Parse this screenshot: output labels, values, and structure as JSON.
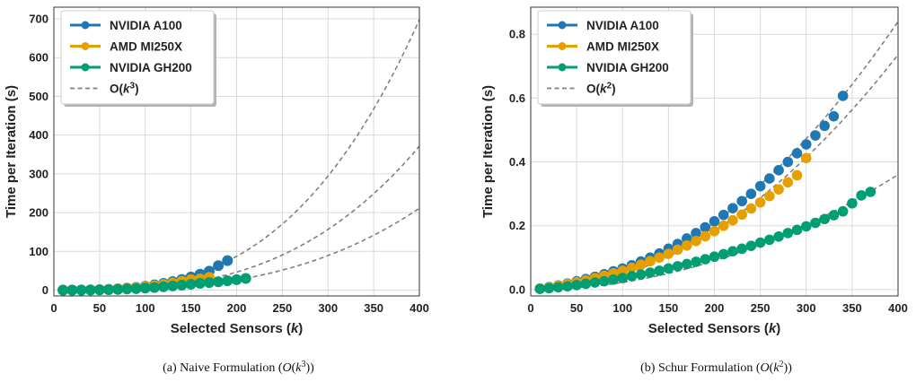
{
  "chart_data": [
    {
      "type": "scatter",
      "caption": "(a) Naive Formulation (𝒪(k³))",
      "xlabel": "Selected Sensors (k)",
      "ylabel": "Time per Iteration (s)",
      "xlim": [
        0,
        400
      ],
      "ylim": [
        -15,
        730
      ],
      "xticks": [
        0,
        50,
        100,
        150,
        200,
        250,
        300,
        350,
        400
      ],
      "yticks": [
        0,
        100,
        200,
        300,
        400,
        500,
        600,
        700
      ],
      "grid": true,
      "legend_position": "top-left",
      "series": [
        {
          "name": "NVIDIA A100",
          "color": "#1f78b4",
          "x": [
            10,
            20,
            30,
            40,
            50,
            60,
            70,
            80,
            90,
            100,
            110,
            120,
            130,
            140,
            150,
            160,
            170,
            180,
            190
          ],
          "y": [
            0.02,
            0.1,
            0.3,
            0.7,
            1.3,
            2.2,
            3.5,
            5.2,
            7.4,
            10,
            13.5,
            17.5,
            22,
            27.5,
            34,
            41,
            49,
            63,
            76
          ]
        },
        {
          "name": "AMD MI250X",
          "color": "#e69f00",
          "x": [
            10,
            20,
            30,
            40,
            50,
            60,
            70,
            80,
            90,
            100,
            110,
            120,
            130,
            140,
            150,
            160,
            170
          ],
          "y": [
            0.01,
            0.08,
            0.25,
            0.6,
            1.1,
            1.9,
            3.0,
            4.4,
            6.3,
            8.5,
            11.3,
            14.5,
            18.5,
            23,
            27,
            29,
            33
          ]
        },
        {
          "name": "NVIDIA GH200",
          "color": "#009e73",
          "x": [
            10,
            20,
            30,
            40,
            50,
            60,
            70,
            80,
            90,
            100,
            110,
            120,
            130,
            140,
            150,
            160,
            170,
            180,
            190,
            200,
            210
          ],
          "y": [
            0.01,
            0.05,
            0.15,
            0.35,
            0.7,
            1.2,
            1.9,
            2.8,
            3.9,
            5.2,
            6.8,
            8.6,
            10.7,
            12.8,
            15,
            17.5,
            19.5,
            21.5,
            24,
            27,
            30
          ]
        }
      ],
      "reference_curves": {
        "name": "O(k³)",
        "color": "#808080",
        "style": "dashed",
        "coefficients": [
          1.09e-05,
          5.8e-06,
          3.3e-06
        ],
        "x_start": 10,
        "x_end": 400
      }
    },
    {
      "type": "scatter",
      "caption": "(b) Schur Formulation (𝒪(k²))",
      "xlabel": "Selected Sensors (k)",
      "ylabel": "Time per Iteration (s)",
      "xlim": [
        0,
        400
      ],
      "ylim": [
        -0.02,
        0.885
      ],
      "xticks": [
        0,
        50,
        100,
        150,
        200,
        250,
        300,
        350,
        400
      ],
      "yticks": [
        0.0,
        0.2,
        0.4,
        0.6,
        0.8
      ],
      "grid": true,
      "legend_position": "top-left",
      "series": [
        {
          "name": "NVIDIA A100",
          "color": "#1f78b4",
          "x": [
            10,
            20,
            30,
            40,
            50,
            60,
            70,
            80,
            90,
            100,
            110,
            120,
            130,
            140,
            150,
            160,
            170,
            180,
            190,
            200,
            210,
            220,
            230,
            240,
            250,
            260,
            270,
            280,
            290,
            300,
            310,
            320,
            330,
            340
          ],
          "y": [
            0.003,
            0.008,
            0.013,
            0.019,
            0.026,
            0.033,
            0.04,
            0.048,
            0.057,
            0.066,
            0.076,
            0.088,
            0.1,
            0.113,
            0.128,
            0.143,
            0.16,
            0.177,
            0.195,
            0.214,
            0.234,
            0.255,
            0.277,
            0.3,
            0.324,
            0.348,
            0.374,
            0.4,
            0.427,
            0.455,
            0.483,
            0.513,
            0.543,
            0.607
          ]
        },
        {
          "name": "AMD MI250X",
          "color": "#e69f00",
          "x": [
            10,
            20,
            30,
            40,
            50,
            60,
            70,
            80,
            90,
            100,
            110,
            120,
            130,
            140,
            150,
            160,
            170,
            180,
            190,
            200,
            210,
            220,
            230,
            240,
            250,
            260,
            270,
            280,
            290,
            300
          ],
          "y": [
            0.003,
            0.007,
            0.012,
            0.017,
            0.023,
            0.029,
            0.036,
            0.043,
            0.051,
            0.059,
            0.068,
            0.078,
            0.089,
            0.1,
            0.112,
            0.125,
            0.138,
            0.152,
            0.167,
            0.183,
            0.2,
            0.217,
            0.235,
            0.254,
            0.273,
            0.293,
            0.314,
            0.336,
            0.358,
            0.412
          ]
        },
        {
          "name": "NVIDIA GH200",
          "color": "#009e73",
          "x": [
            10,
            20,
            30,
            40,
            50,
            60,
            70,
            80,
            90,
            100,
            110,
            120,
            130,
            140,
            150,
            160,
            170,
            180,
            190,
            200,
            210,
            220,
            230,
            240,
            250,
            260,
            270,
            280,
            290,
            300,
            310,
            320,
            330,
            340,
            350,
            360,
            370
          ],
          "y": [
            0.002,
            0.004,
            0.007,
            0.01,
            0.014,
            0.018,
            0.022,
            0.026,
            0.031,
            0.036,
            0.042,
            0.047,
            0.053,
            0.059,
            0.066,
            0.073,
            0.08,
            0.087,
            0.095,
            0.103,
            0.111,
            0.12,
            0.128,
            0.137,
            0.147,
            0.156,
            0.166,
            0.177,
            0.187,
            0.198,
            0.209,
            0.221,
            0.233,
            0.245,
            0.27,
            0.295,
            0.306
          ]
        }
      ],
      "reference_curves": {
        "name": "O(k²)",
        "color": "#808080",
        "style": "dashed",
        "coefficients": [
          5.25e-06,
          4.6e-06,
          2.25e-06
        ],
        "x_start": 10,
        "x_end": 400
      }
    }
  ]
}
